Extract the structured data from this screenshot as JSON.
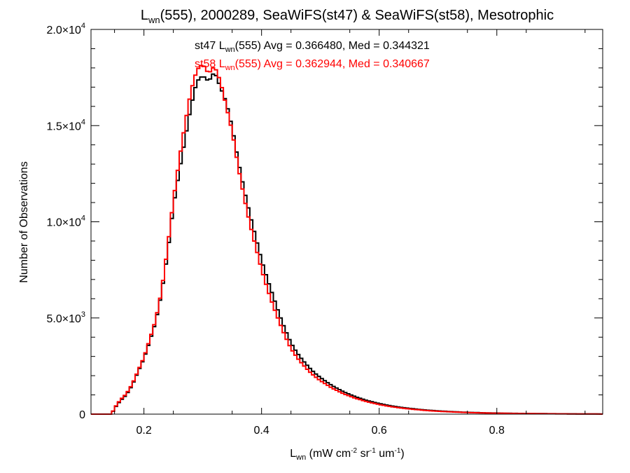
{
  "chart_data": {
    "type": "line",
    "title_main": "L",
    "title_sub": "wn",
    "title_rest": "(555), 2000289, SeaWiFS(st47) & SeaWiFS(st58), Mesotrophic",
    "xlabel_main": "L",
    "xlabel_sub": "wn",
    "xlabel_units": " (mW cm",
    "xlabel_exp1": "-2",
    "xlabel_mid1": " sr",
    "xlabel_exp2": "-1",
    "xlabel_mid2": " um",
    "xlabel_exp3": "-1",
    "xlabel_end": ")",
    "ylabel": "Number of Observations",
    "xlim": [
      0.11,
      0.98
    ],
    "ylim": [
      0,
      20000
    ],
    "x_ticks": [
      0.2,
      0.4,
      0.6,
      0.8
    ],
    "x_tick_labels": [
      "0.2",
      "0.4",
      "0.6",
      "0.8"
    ],
    "y_ticks": [
      {
        "value": 0,
        "mantissa": "0",
        "exponent": ""
      },
      {
        "value": 5000,
        "mantissa": "5.0×10",
        "exponent": "3"
      },
      {
        "value": 10000,
        "mantissa": "1.0×10",
        "exponent": "4"
      },
      {
        "value": 15000,
        "mantissa": "1.5×10",
        "exponent": "4"
      },
      {
        "value": 20000,
        "mantissa": "2.0×10",
        "exponent": "4"
      }
    ],
    "legend": [
      {
        "prefix": "st47 L",
        "sub": "wn",
        "suffix": "(555) Avg = 0.366480, Med = 0.344321",
        "color": "#000000"
      },
      {
        "prefix": "st58 L",
        "sub": "wn",
        "suffix": "(555) Avg = 0.362944, Med = 0.340667",
        "color": "#ff0000"
      }
    ],
    "series": [
      {
        "color": "#000000",
        "x": [
          0.11,
          0.13,
          0.145,
          0.15,
          0.16,
          0.17,
          0.18,
          0.19,
          0.2,
          0.21,
          0.22,
          0.23,
          0.24,
          0.25,
          0.26,
          0.27,
          0.28,
          0.29,
          0.3,
          0.31,
          0.32,
          0.33,
          0.34,
          0.35,
          0.36,
          0.37,
          0.38,
          0.39,
          0.4,
          0.41,
          0.42,
          0.43,
          0.44,
          0.45,
          0.46,
          0.47,
          0.48,
          0.49,
          0.5,
          0.52,
          0.54,
          0.56,
          0.58,
          0.6,
          0.62,
          0.64,
          0.66,
          0.68,
          0.7,
          0.72,
          0.74,
          0.76,
          0.78,
          0.8,
          0.83,
          0.86,
          0.9,
          0.94,
          0.98
        ],
        "y": [
          0,
          0,
          0,
          300,
          700,
          1000,
          1500,
          2200,
          2900,
          3800,
          4800,
          6300,
          8300,
          10800,
          12600,
          14300,
          16000,
          17300,
          17600,
          17300,
          17800,
          17000,
          16200,
          14900,
          13200,
          11700,
          10400,
          9200,
          8000,
          7000,
          6100,
          5200,
          4400,
          3700,
          3200,
          2800,
          2450,
          2150,
          1900,
          1480,
          1150,
          900,
          700,
          550,
          430,
          340,
          270,
          210,
          170,
          135,
          105,
          85,
          68,
          55,
          40,
          30,
          20,
          12,
          5
        ]
      },
      {
        "color": "#ff0000",
        "x": [
          0.11,
          0.13,
          0.145,
          0.15,
          0.16,
          0.17,
          0.18,
          0.19,
          0.2,
          0.21,
          0.22,
          0.23,
          0.24,
          0.25,
          0.26,
          0.27,
          0.28,
          0.29,
          0.3,
          0.31,
          0.32,
          0.33,
          0.34,
          0.35,
          0.36,
          0.37,
          0.38,
          0.39,
          0.4,
          0.41,
          0.42,
          0.43,
          0.44,
          0.45,
          0.46,
          0.47,
          0.48,
          0.49,
          0.5,
          0.52,
          0.54,
          0.56,
          0.58,
          0.6,
          0.62,
          0.64,
          0.66,
          0.68,
          0.7,
          0.72,
          0.74,
          0.76,
          0.78,
          0.8,
          0.83,
          0.86,
          0.9,
          0.94,
          0.98
        ],
        "y": [
          0,
          0,
          0,
          320,
          750,
          1050,
          1550,
          2250,
          2950,
          3900,
          4900,
          6400,
          8600,
          11100,
          13200,
          15100,
          16800,
          17900,
          18200,
          17700,
          18100,
          17300,
          16000,
          14700,
          12900,
          11300,
          9900,
          8700,
          7500,
          6500,
          5600,
          4800,
          4050,
          3400,
          2950,
          2580,
          2250,
          1970,
          1740,
          1350,
          1050,
          820,
          640,
          500,
          390,
          310,
          245,
          190,
          150,
          120,
          95,
          75,
          60,
          48,
          35,
          25,
          16,
          10,
          4
        ]
      }
    ]
  }
}
